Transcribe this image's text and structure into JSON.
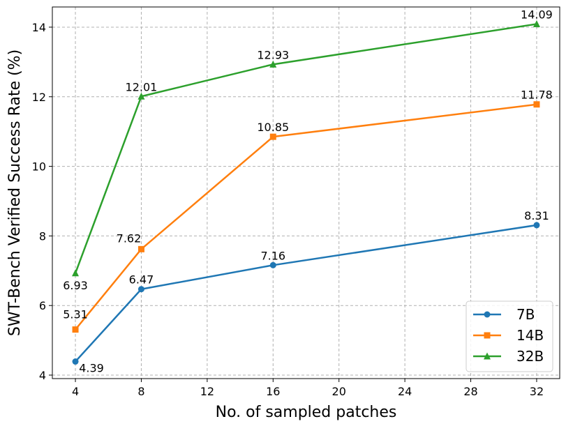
{
  "chart_data": {
    "type": "line",
    "title": "",
    "xlabel": "No. of sampled patches",
    "ylabel": "SWT-Bench Verified Success Rate (%)",
    "x": [
      4,
      8,
      16,
      32
    ],
    "xlim": [
      2.6,
      33.4
    ],
    "ylim": [
      3.9,
      14.58
    ],
    "xticks": [
      4,
      8,
      12,
      16,
      20,
      24,
      28,
      32
    ],
    "yticks": [
      4,
      6,
      8,
      10,
      12,
      14
    ],
    "grid": true,
    "legend_position": "lower-right",
    "series": [
      {
        "name": "7B",
        "values": [
          4.39,
          6.47,
          7.16,
          8.31
        ],
        "labels": [
          "4.39",
          "6.47",
          "7.16",
          "8.31"
        ],
        "color": "#1f77b4",
        "marker": "circle"
      },
      {
        "name": "14B",
        "values": [
          5.31,
          7.62,
          10.85,
          11.78
        ],
        "labels": [
          "5.31",
          "7.62",
          "10.85",
          "11.78"
        ],
        "color": "#ff7f0e",
        "marker": "square"
      },
      {
        "name": "32B",
        "values": [
          6.93,
          12.01,
          12.93,
          14.09
        ],
        "labels": [
          "6.93",
          "12.01",
          "12.93",
          "14.09"
        ],
        "color": "#2ca02c",
        "marker": "triangle"
      }
    ]
  }
}
